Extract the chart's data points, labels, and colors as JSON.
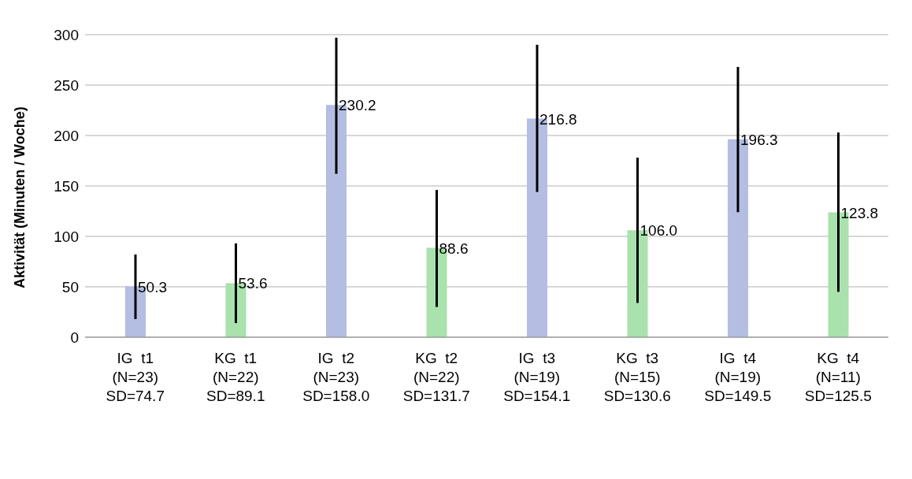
{
  "chart_data": {
    "type": "bar",
    "ylabel": "Aktivität (Minuten / Woche)",
    "categories": [
      "IG  t1\n(N=23)\nSD=74.7",
      "KG  t1\n(N=22)\nSD=89.1",
      "IG  t2\n(N=23)\nSD=158.0",
      "KG  t2\n(N=22)\nSD=131.7",
      "IG  t3\n(N=19)\nSD=154.1",
      "KG  t3\n(N=15)\nSD=130.6",
      "IG  t4\n(N=19)\nSD=149.5",
      "KG  t4\n(N=11)\nSD=125.5"
    ],
    "values": [
      50.3,
      53.6,
      230.2,
      88.6,
      216.8,
      106.0,
      196.3,
      123.8
    ],
    "value_labels": [
      "50.3",
      "53.6",
      "230.2",
      "88.6",
      "216.8",
      "106.0",
      "196.3",
      "123.8"
    ],
    "colors": [
      "#b4bee2",
      "#a9e2ac",
      "#b4bee2",
      "#a9e2ac",
      "#b4bee2",
      "#a9e2ac",
      "#b4bee2",
      "#a9e2ac"
    ],
    "errors": [
      [
        18,
        82
      ],
      [
        14,
        93
      ],
      [
        162,
        297
      ],
      [
        30,
        146
      ],
      [
        144,
        290
      ],
      [
        34,
        178
      ],
      [
        124,
        268
      ],
      [
        45,
        203
      ]
    ],
    "ylim": [
      0,
      300
    ],
    "yticks": [
      0,
      50,
      100,
      150,
      200,
      250,
      300
    ],
    "grid": "y"
  }
}
